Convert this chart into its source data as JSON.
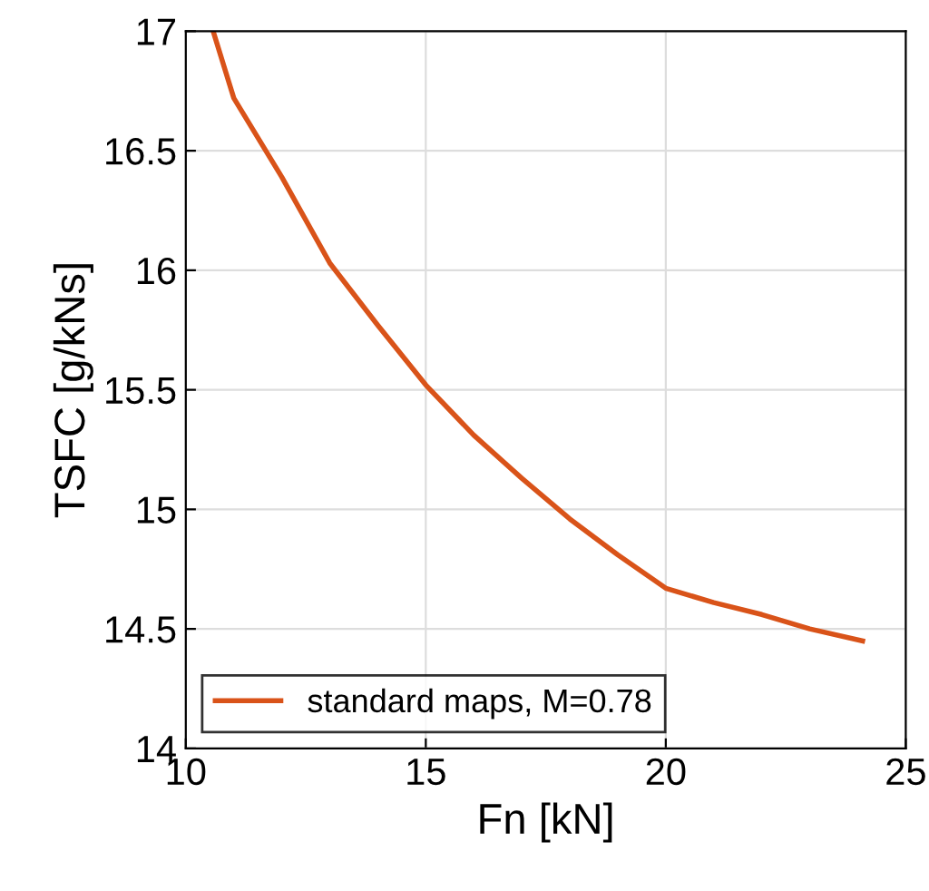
{
  "chart_data": {
    "type": "line",
    "xlabel": "Fn [kN]",
    "ylabel": "TSFC [g/kNs]",
    "xlim": [
      10,
      25
    ],
    "ylim": [
      14,
      17
    ],
    "xticks": [
      10,
      15,
      20,
      25
    ],
    "yticks": [
      14,
      {
        "value": 14.5,
        "label": "14.5"
      },
      15,
      {
        "value": 15.5,
        "label": "15.5"
      },
      16,
      {
        "value": 16.5,
        "label": "16.5"
      },
      17
    ],
    "grid": true,
    "legend": "bottom left",
    "line_style": "solid",
    "marker": "none",
    "series": [
      {
        "name": "standard maps, M=0.78",
        "color": "#d95319",
        "x": [
          10.57,
          11,
          12,
          13,
          14,
          15,
          16,
          17,
          18,
          19,
          20,
          21,
          22,
          23,
          24.1
        ],
        "values": [
          17.0,
          16.72,
          16.39,
          16.03,
          15.77,
          15.52,
          15.31,
          15.13,
          14.96,
          14.81,
          14.67,
          14.61,
          14.56,
          14.5,
          14.45
        ]
      }
    ]
  }
}
